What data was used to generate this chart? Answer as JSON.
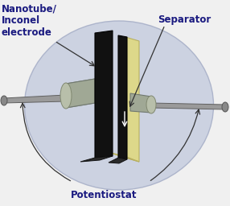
{
  "bg_color": "#f0f0f0",
  "ellipse_color": "#c8cfe0",
  "ellipse_edge": "#a8b0c8",
  "black_plate_color": "#111111",
  "yellow_plate_color": "#ddd88a",
  "yellow_plate_edge": "#b8b060",
  "label_nanotube": "Nanotube/\nInconel\nelectrode",
  "label_separator": "Separator",
  "label_potentiostat": "Potentiostat",
  "label_color": "#1a1a80",
  "label_fontsize": 8.5,
  "label_fontweight": "bold",
  "rod_fill": "#a8a8a8",
  "rod_edge": "#707070",
  "cyl_fill": "#b8b8b8",
  "cyl_top": "#cccccc"
}
